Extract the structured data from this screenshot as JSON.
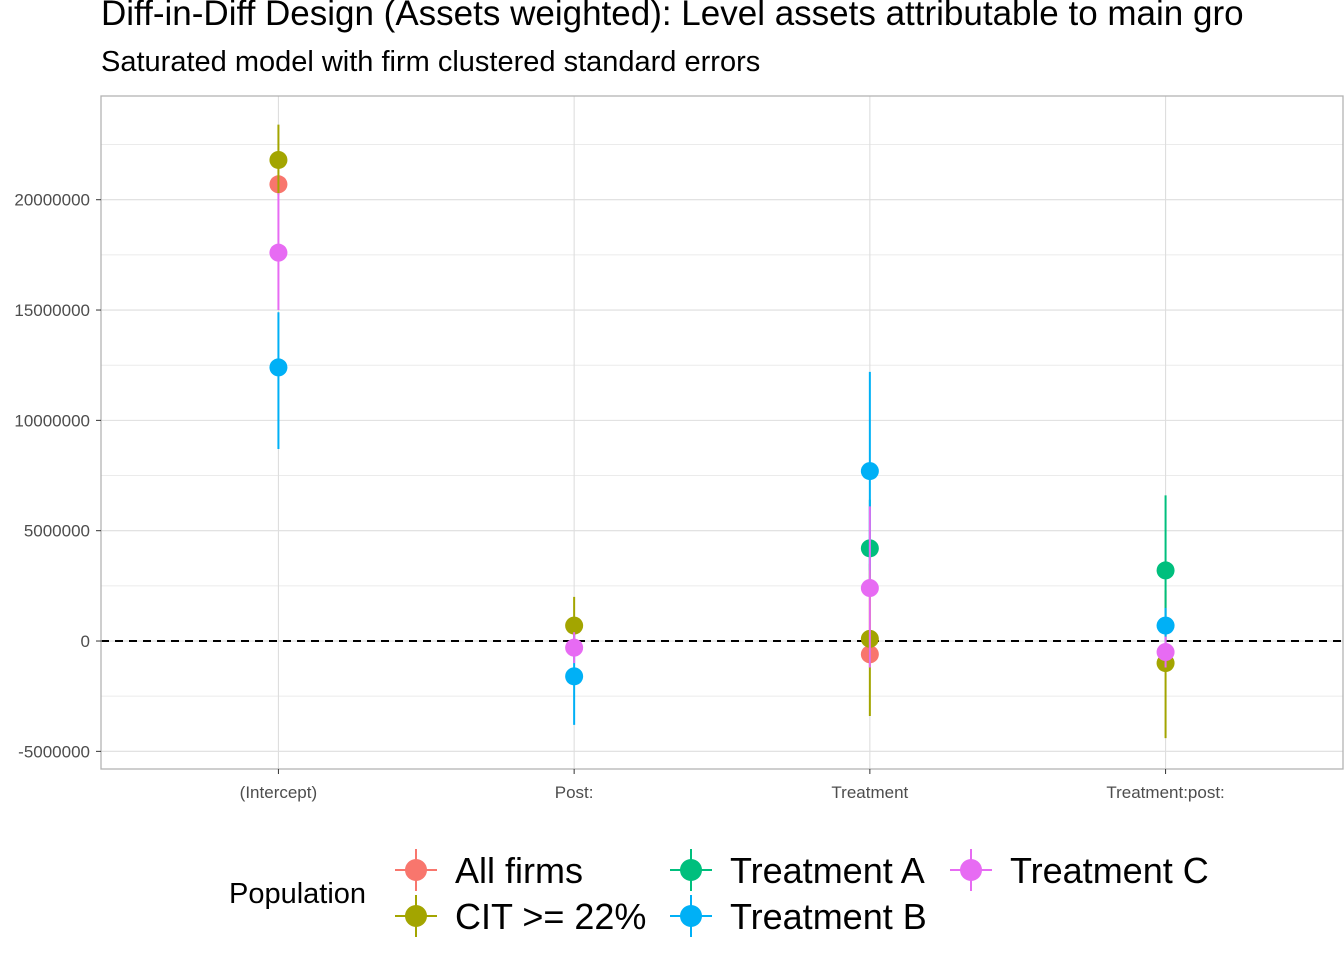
{
  "title": "Diff-in-Diff Design (Assets weighted): Level assets attributable to main gro",
  "subtitle": "Saturated model with firm clustered standard errors",
  "chart_data": {
    "type": "scatter",
    "subtype": "pointrange",
    "title": "Diff-in-Diff Design (Assets weighted): Level assets attributable to main gro",
    "subtitle": "Saturated model with firm clustered standard errors",
    "xlabel": "",
    "ylabel": "",
    "categories": [
      "(Intercept)",
      "Post:",
      "Treatment",
      "Treatment:post:"
    ],
    "ylim": [
      -5800000,
      24700000
    ],
    "yticks": [
      -5000000,
      0,
      5000000,
      10000000,
      15000000,
      20000000
    ],
    "ytick_labels": [
      "-5000000",
      "0",
      "5000000",
      "10000000",
      "15000000",
      "20000000"
    ],
    "reference_line": {
      "y": 0,
      "style": "dashed"
    },
    "grid": true,
    "legend": {
      "title": "Population",
      "position": "bottom"
    },
    "series": [
      {
        "name": "All firms",
        "color": "#F8766D",
        "points": [
          {
            "category": "(Intercept)",
            "estimate": 20700000,
            "low": 20700000,
            "high": 20700000
          },
          {
            "category": "Treatment",
            "estimate": -600000,
            "low": -600000,
            "high": -600000
          }
        ]
      },
      {
        "name": "CIT >= 22%",
        "color": "#A3A500",
        "points": [
          {
            "category": "(Intercept)",
            "estimate": 21800000,
            "low": 20200000,
            "high": 23400000
          },
          {
            "category": "Post:",
            "estimate": 700000,
            "low": -500000,
            "high": 2000000
          },
          {
            "category": "Treatment",
            "estimate": 100000,
            "low": -3400000,
            "high": 3500000
          },
          {
            "category": "Treatment:post:",
            "estimate": -1000000,
            "low": -4400000,
            "high": 2300000
          }
        ]
      },
      {
        "name": "Treatment A",
        "color": "#00BF7D",
        "points": [
          {
            "category": "Treatment",
            "estimate": 4200000,
            "low": 2000000,
            "high": 6400000
          },
          {
            "category": "Treatment:post:",
            "estimate": 3200000,
            "low": -200000,
            "high": 6600000
          }
        ]
      },
      {
        "name": "Treatment B",
        "color": "#00B0F6",
        "points": [
          {
            "category": "(Intercept)",
            "estimate": 12400000,
            "low": 8700000,
            "high": 14900000
          },
          {
            "category": "Post:",
            "estimate": -1600000,
            "low": -3800000,
            "high": 300000
          },
          {
            "category": "Treatment",
            "estimate": 7700000,
            "low": 3200000,
            "high": 12200000
          },
          {
            "category": "Treatment:post:",
            "estimate": 700000,
            "low": -100000,
            "high": 1500000
          }
        ]
      },
      {
        "name": "Treatment C",
        "color": "#E76BF3",
        "points": [
          {
            "category": "(Intercept)",
            "estimate": 17600000,
            "low": 15000000,
            "high": 20300000
          },
          {
            "category": "Post:",
            "estimate": -300000,
            "low": -1000000,
            "high": 400000
          },
          {
            "category": "Treatment",
            "estimate": 2400000,
            "low": -1200000,
            "high": 6100000
          },
          {
            "category": "Treatment:post:",
            "estimate": -500000,
            "low": -1200000,
            "high": 200000
          }
        ]
      }
    ]
  }
}
